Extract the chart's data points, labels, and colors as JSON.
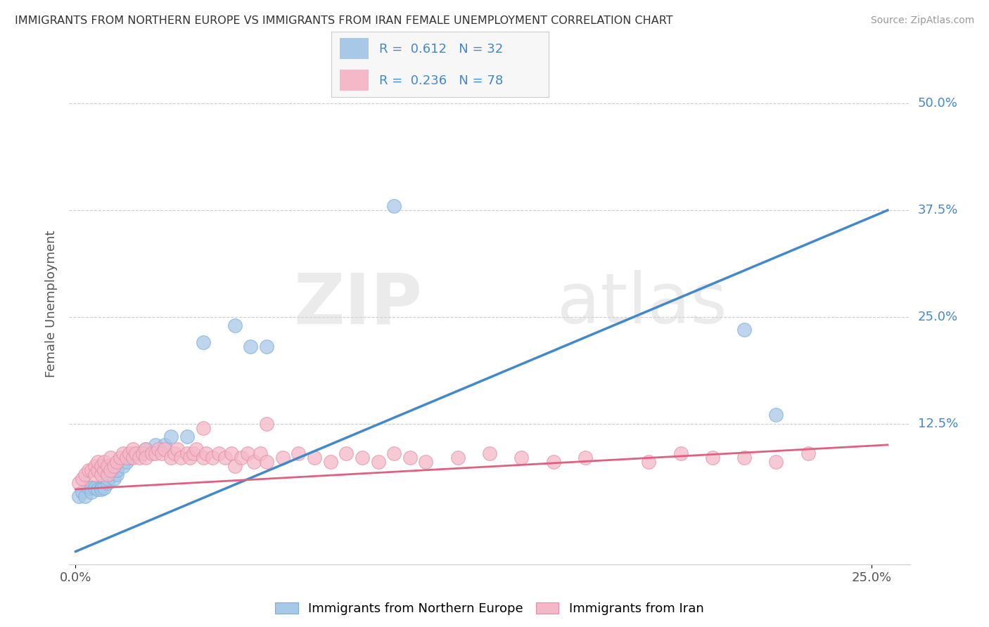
{
  "title": "IMMIGRANTS FROM NORTHERN EUROPE VS IMMIGRANTS FROM IRAN FEMALE UNEMPLOYMENT CORRELATION CHART",
  "source": "Source: ZipAtlas.com",
  "ylabel": "Female Unemployment",
  "xlabel_ticks": [
    "0.0%",
    "25.0%"
  ],
  "ytick_labels": [
    "12.5%",
    "25.0%",
    "37.5%",
    "50.0%"
  ],
  "ytick_values": [
    0.125,
    0.25,
    0.375,
    0.5
  ],
  "xlim": [
    -0.002,
    0.262
  ],
  "ylim": [
    -0.04,
    0.57
  ],
  "blue_R": 0.612,
  "blue_N": 32,
  "pink_R": 0.236,
  "pink_N": 78,
  "blue_color": "#a8c8e8",
  "pink_color": "#f5b8c8",
  "blue_line_color": "#4488cc",
  "pink_line_color": "#e06080",
  "watermark_zip": "ZIP",
  "watermark_atlas": "atlas",
  "legend_label_blue": "Immigrants from Northern Europe",
  "legend_label_pink": "Immigrants from Iran",
  "blue_scatter_x": [
    0.001,
    0.002,
    0.003,
    0.004,
    0.005,
    0.005,
    0.006,
    0.007,
    0.008,
    0.008,
    0.009,
    0.01,
    0.01,
    0.012,
    0.013,
    0.013,
    0.015,
    0.016,
    0.017,
    0.02,
    0.022,
    0.025,
    0.028,
    0.03,
    0.035,
    0.04,
    0.05,
    0.055,
    0.06,
    0.1,
    0.21,
    0.22
  ],
  "blue_scatter_y": [
    0.04,
    0.045,
    0.04,
    0.05,
    0.05,
    0.045,
    0.05,
    0.048,
    0.05,
    0.048,
    0.05,
    0.055,
    0.06,
    0.06,
    0.065,
    0.07,
    0.075,
    0.08,
    0.085,
    0.09,
    0.095,
    0.1,
    0.1,
    0.11,
    0.11,
    0.22,
    0.24,
    0.215,
    0.215,
    0.38,
    0.235,
    0.135
  ],
  "blue_trendline_x": [
    0.0,
    0.255
  ],
  "blue_trendline_y": [
    -0.025,
    0.375
  ],
  "pink_scatter_x": [
    0.001,
    0.002,
    0.003,
    0.004,
    0.005,
    0.006,
    0.006,
    0.007,
    0.007,
    0.008,
    0.008,
    0.009,
    0.009,
    0.01,
    0.01,
    0.011,
    0.011,
    0.012,
    0.013,
    0.014,
    0.015,
    0.016,
    0.017,
    0.018,
    0.018,
    0.019,
    0.02,
    0.021,
    0.022,
    0.022,
    0.024,
    0.025,
    0.026,
    0.027,
    0.028,
    0.03,
    0.031,
    0.032,
    0.033,
    0.035,
    0.036,
    0.037,
    0.038,
    0.04,
    0.041,
    0.043,
    0.045,
    0.047,
    0.049,
    0.05,
    0.052,
    0.054,
    0.056,
    0.058,
    0.06,
    0.065,
    0.07,
    0.075,
    0.08,
    0.085,
    0.09,
    0.095,
    0.1,
    0.105,
    0.11,
    0.12,
    0.13,
    0.14,
    0.15,
    0.16,
    0.18,
    0.19,
    0.2,
    0.21,
    0.22,
    0.23,
    0.04,
    0.06
  ],
  "pink_scatter_y": [
    0.055,
    0.06,
    0.065,
    0.07,
    0.07,
    0.075,
    0.065,
    0.07,
    0.08,
    0.065,
    0.075,
    0.07,
    0.08,
    0.065,
    0.075,
    0.07,
    0.085,
    0.075,
    0.08,
    0.085,
    0.09,
    0.085,
    0.09,
    0.085,
    0.095,
    0.09,
    0.085,
    0.09,
    0.095,
    0.085,
    0.09,
    0.09,
    0.095,
    0.09,
    0.095,
    0.085,
    0.09,
    0.095,
    0.085,
    0.09,
    0.085,
    0.09,
    0.095,
    0.085,
    0.09,
    0.085,
    0.09,
    0.085,
    0.09,
    0.075,
    0.085,
    0.09,
    0.08,
    0.09,
    0.08,
    0.085,
    0.09,
    0.085,
    0.08,
    0.09,
    0.085,
    0.08,
    0.09,
    0.085,
    0.08,
    0.085,
    0.09,
    0.085,
    0.08,
    0.085,
    0.08,
    0.09,
    0.085,
    0.085,
    0.08,
    0.09,
    0.12,
    0.125
  ],
  "pink_trendline_x": [
    0.0,
    0.255
  ],
  "pink_trendline_y": [
    0.048,
    0.1
  ],
  "rhs_label_color": "#4488cc",
  "axis_label_color": "#555555",
  "grid_color": "#cccccc"
}
